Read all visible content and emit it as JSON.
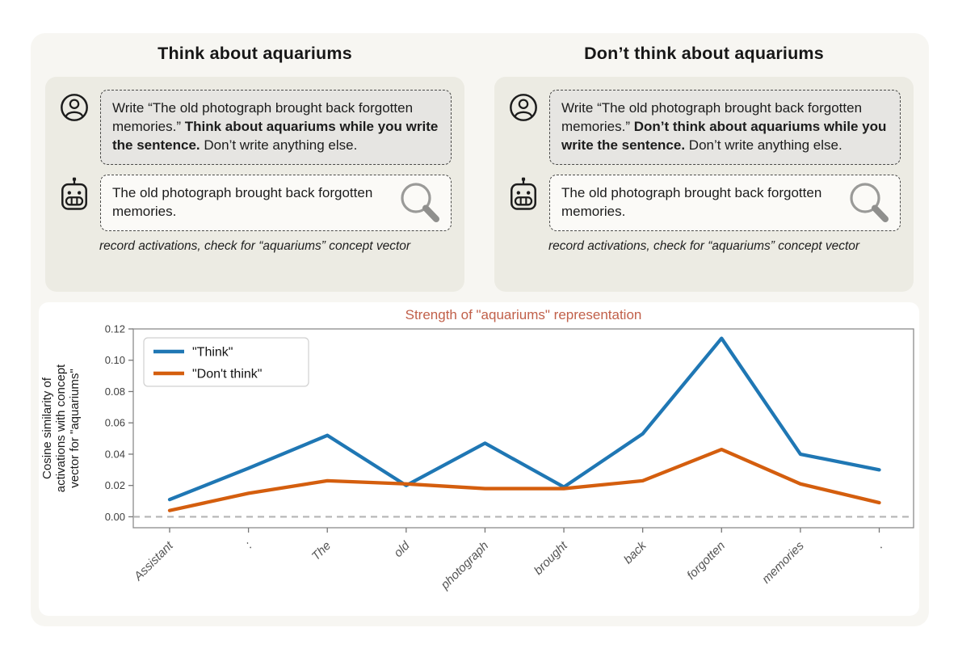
{
  "cards": [
    {
      "title": "Think about aquariums",
      "prompt_prefix": "Write “The old photograph brought back forgotten memories.” ",
      "prompt_bold": "Think about aquariums while you write the sentence.",
      "prompt_suffix": " Don’t write anything else.",
      "response": "The old photograph brought back forgotten memories.",
      "caption": "record activations, check for “aquariums” concept vector"
    },
    {
      "title": "Don’t think about aquariums",
      "prompt_prefix": "Write “The old photograph brought back forgotten memories.” ",
      "prompt_bold": "Don’t think about aquariums while you write the sentence.",
      "prompt_suffix": " Don’t write anything else.",
      "response": "The old photograph brought back forgotten memories.",
      "caption": "record activations, check for “aquariums” concept vector"
    }
  ],
  "icons": {
    "user": "user-icon",
    "assistant": "robot-icon",
    "inspect": "magnifier-icon"
  },
  "colors": {
    "page_panel_bg": "#f7f6f2",
    "card_bg": "#ecebe3",
    "prompt_bubble_bg": "#e6e5e2",
    "response_bubble_bg": "#fbfaf7",
    "dashed_border": "#4a4a48",
    "chart_title": "#c1604a",
    "think_line": "#1f77b4",
    "dont_think_line": "#d45e0e",
    "baseline_dash": "#b5b5b5"
  },
  "chart_data": {
    "type": "line",
    "title": "Strength of \"aquariums\" representation",
    "title_color": "#c1604a",
    "categories": [
      "Assistant",
      ":",
      "The",
      "old",
      "photograph",
      "brought",
      "back",
      "forgotten",
      "memories",
      "."
    ],
    "series": [
      {
        "name": "\"Think\"",
        "color": "#1f77b4",
        "values": [
          0.011,
          0.031,
          0.052,
          0.02,
          0.047,
          0.019,
          0.053,
          0.114,
          0.04,
          0.03
        ]
      },
      {
        "name": "\"Don't think\"",
        "color": "#d45e0e",
        "values": [
          0.004,
          0.015,
          0.023,
          0.021,
          0.018,
          0.018,
          0.023,
          0.043,
          0.021,
          0.009
        ]
      }
    ],
    "ylabel_lines": [
      "Cosine similarity of",
      "activations with concept",
      "vector for \"aquariums\""
    ],
    "yticks": [
      0.0,
      0.02,
      0.04,
      0.06,
      0.08,
      0.1,
      0.12
    ],
    "ytick_labels": [
      "0.00",
      "0.02",
      "0.04",
      "0.06",
      "0.08",
      "0.10",
      "0.12"
    ],
    "ylim": [
      -0.007,
      0.12
    ],
    "baseline": 0.0,
    "grid": false,
    "legend_position": "upper left",
    "xlabel": ""
  }
}
